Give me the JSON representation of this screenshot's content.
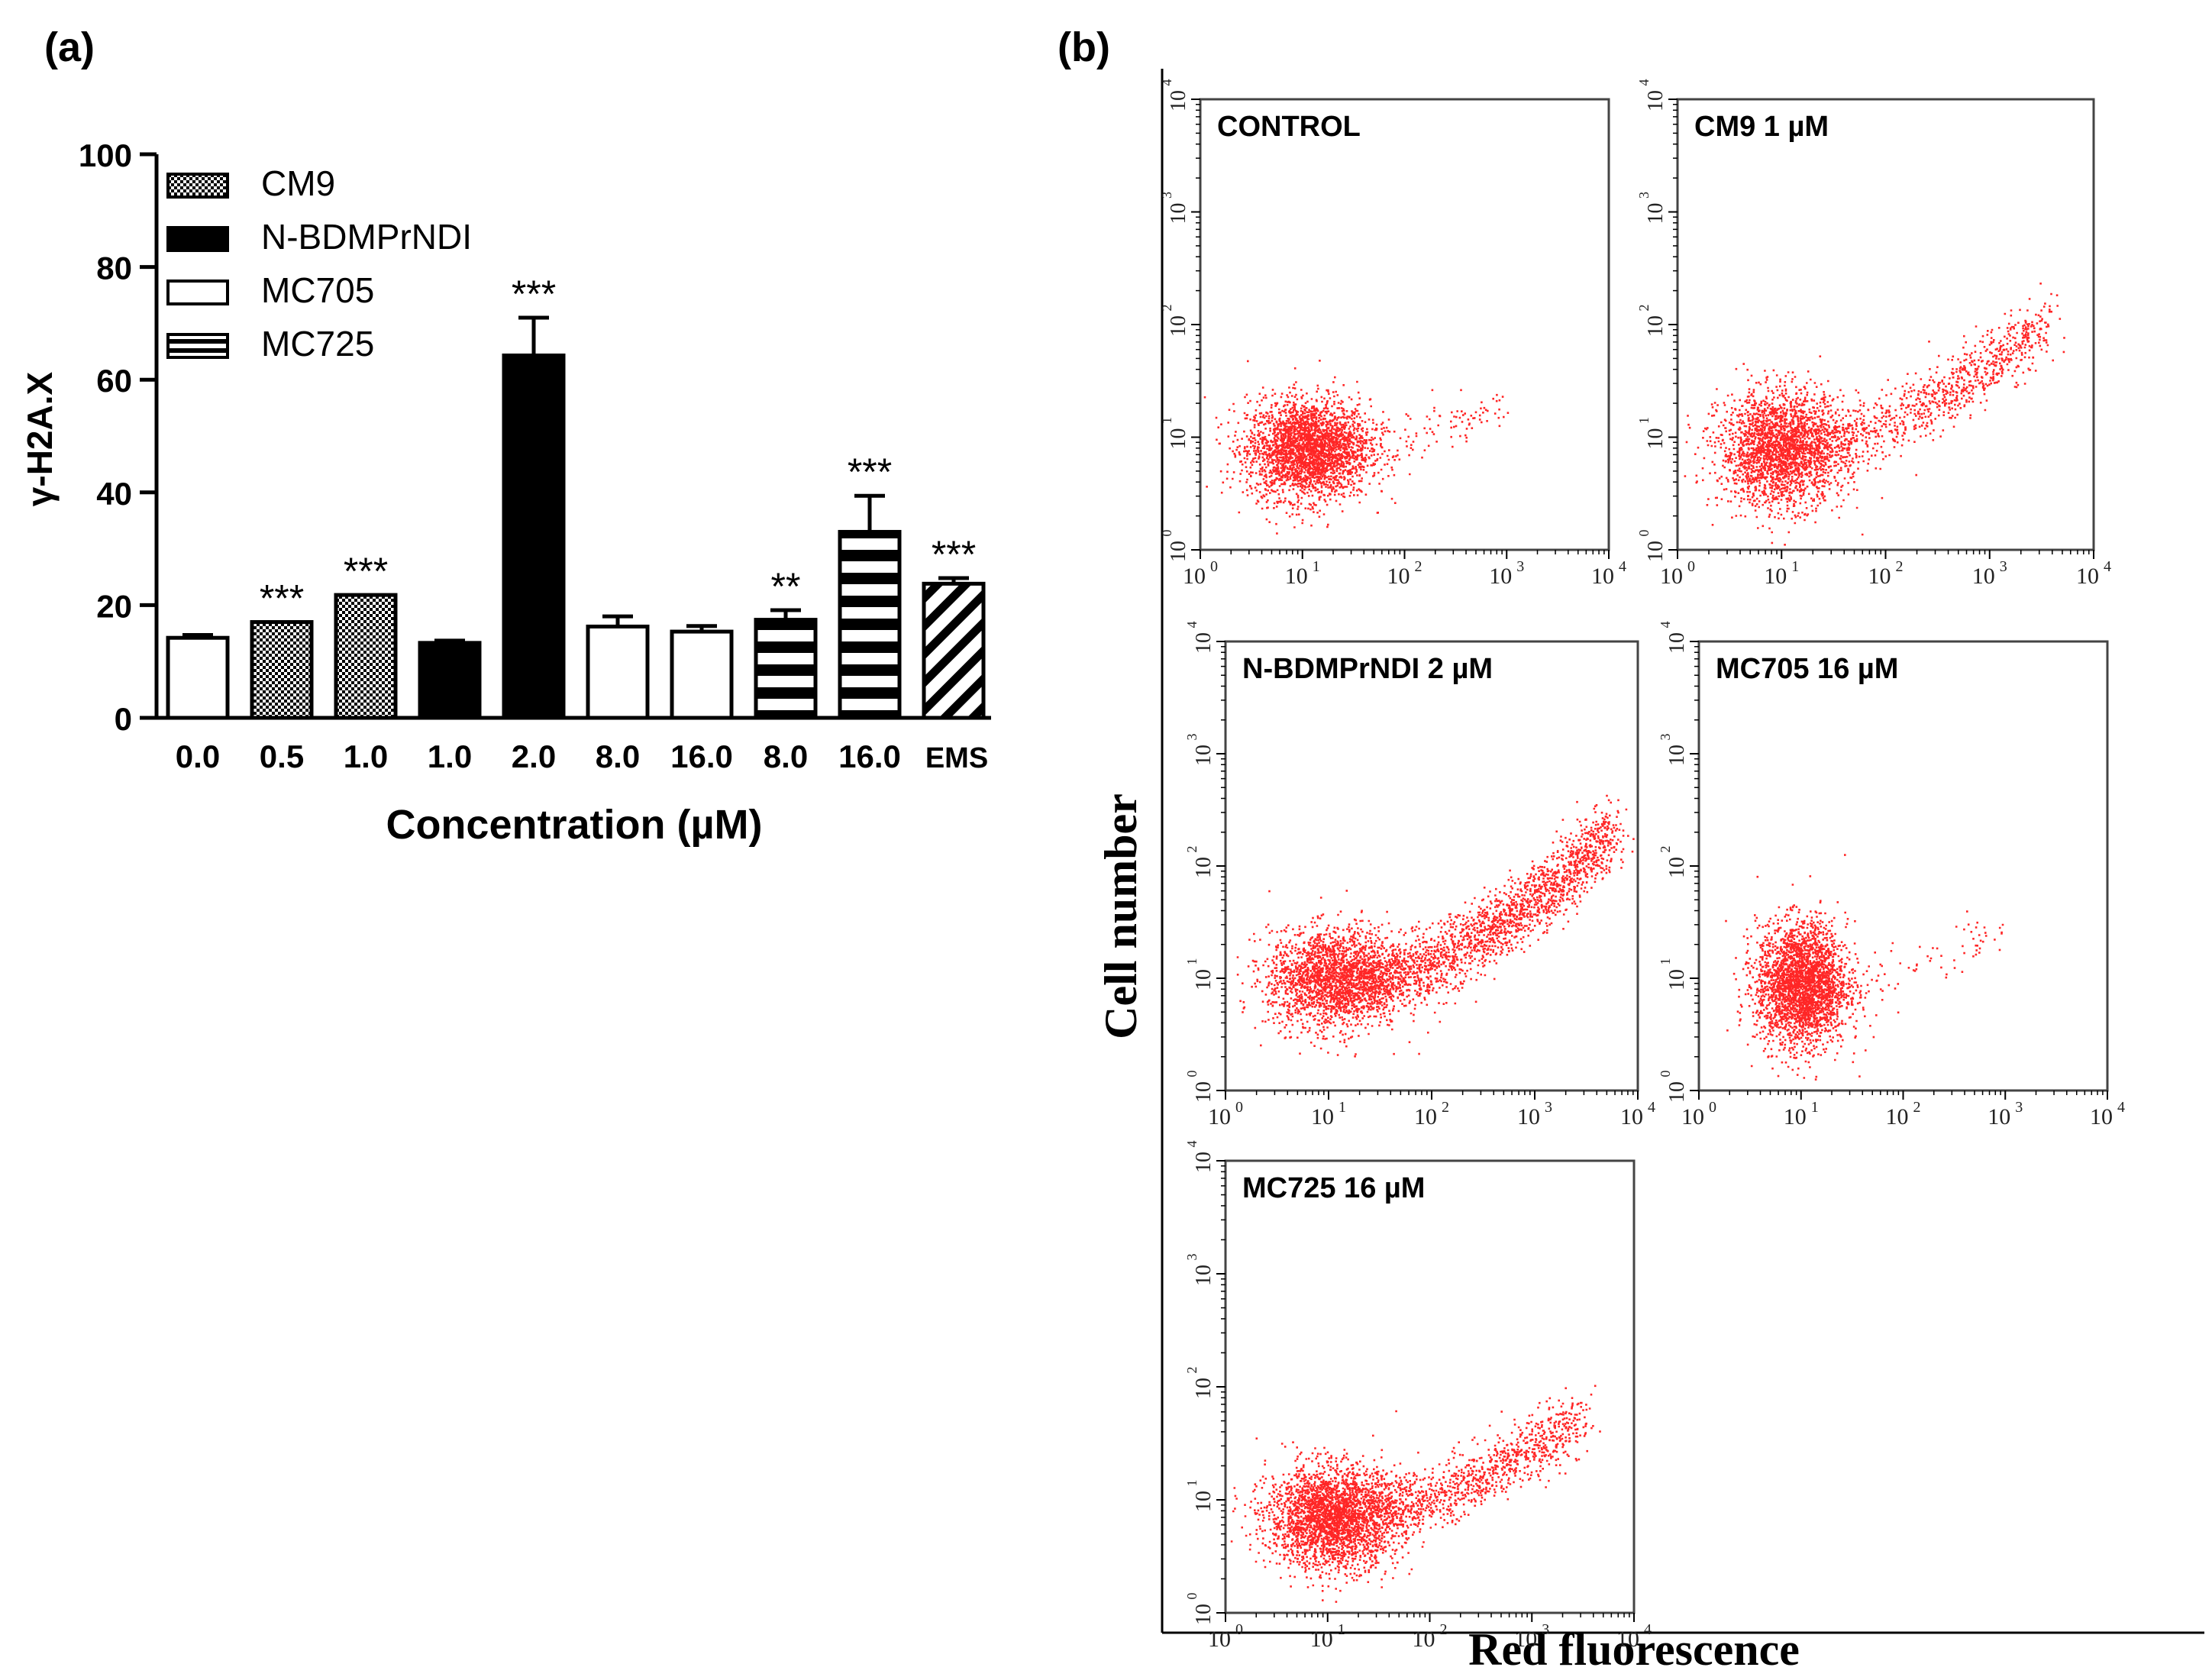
{
  "figure": {
    "panel_a_label": "(a)",
    "panel_b_label": "(b)"
  },
  "colors": {
    "axis": "#000000",
    "scatter": "#ff0000",
    "background": "#ffffff"
  },
  "chart_data": [
    {
      "type": "bar",
      "panel": "(a)",
      "title": "",
      "xlabel": "Concentration (µM)",
      "ylabel": "γ-H2A.X",
      "ylim": [
        0,
        100
      ],
      "yticks": [
        "0",
        "20",
        "40",
        "60",
        "80",
        "100"
      ],
      "ytick_values": [
        0,
        20,
        40,
        60,
        80,
        100
      ],
      "legend_position": "top-left",
      "legend": [
        {
          "name": "CM9",
          "fill": "checker"
        },
        {
          "name": "N-BDMPrNDI",
          "fill": "solid"
        },
        {
          "name": "MC705",
          "fill": "empty"
        },
        {
          "name": "MC725",
          "fill": "hstripe"
        }
      ],
      "bars": [
        {
          "label": "0.0",
          "value": 14.2,
          "error": 0.5,
          "fill": "empty",
          "sig": ""
        },
        {
          "label": "0.5",
          "value": 17.0,
          "error": 0.0,
          "fill": "checker",
          "sig": "***"
        },
        {
          "label": "1.0",
          "value": 21.8,
          "error": 0.0,
          "fill": "checker",
          "sig": "***"
        },
        {
          "label": "1.0",
          "value": 13.3,
          "error": 0.4,
          "fill": "solid",
          "sig": ""
        },
        {
          "label": "2.0",
          "value": 64.3,
          "error": 6.7,
          "fill": "solid",
          "sig": "***"
        },
        {
          "label": "8.0",
          "value": 16.2,
          "error": 1.8,
          "fill": "empty",
          "sig": ""
        },
        {
          "label": "16.0",
          "value": 15.3,
          "error": 1.0,
          "fill": "empty",
          "sig": ""
        },
        {
          "label": "8.0",
          "value": 17.4,
          "error": 1.7,
          "fill": "hstripe",
          "sig": "**"
        },
        {
          "label": "16.0",
          "value": 33.0,
          "error": 6.4,
          "fill": "hstripe",
          "sig": "***"
        },
        {
          "label": "EMS",
          "value": 23.8,
          "error": 1.0,
          "fill": "diag",
          "sig": "***"
        }
      ]
    },
    {
      "type": "scatter",
      "panel": "(b)",
      "xlabel": "Red fluorescence",
      "ylabel": "Cell number",
      "scale": "log",
      "xlim": [
        1,
        10000
      ],
      "ylim": [
        1,
        10000
      ],
      "tick_labels": [
        "10",
        "10",
        "10",
        "10",
        "10"
      ],
      "tick_exponents": [
        "0",
        "1",
        "2",
        "3",
        "4"
      ],
      "plots": [
        {
          "title": "CONTROL",
          "clusters": [
            {
              "cx": 1.05,
              "cy": 0.9,
              "sx": 0.3,
              "sy": 0.22,
              "n": 2800
            }
          ],
          "tails": [
            {
              "x0": 1.3,
              "y0": 0.95,
              "x1": 3.0,
              "y1": 1.3,
              "spread": 0.1,
              "n": 120
            }
          ]
        },
        {
          "title": "CM9 1 µM",
          "clusters": [
            {
              "cx": 1.0,
              "cy": 0.9,
              "sx": 0.3,
              "sy": 0.25,
              "n": 2400
            }
          ],
          "tails": [
            {
              "x0": 1.3,
              "y0": 0.95,
              "x1": 3.55,
              "y1": 2.05,
              "spread": 0.14,
              "n": 900
            }
          ]
        },
        {
          "title": "N-BDMPrNDI 2 µM",
          "clusters": [
            {
              "cx": 1.05,
              "cy": 1.0,
              "sx": 0.32,
              "sy": 0.22,
              "n": 2200
            }
          ],
          "tails": [
            {
              "x0": 1.35,
              "y0": 1.0,
              "x1": 3.75,
              "y1": 2.3,
              "spread": 0.15,
              "n": 1900
            }
          ]
        },
        {
          "title": "MC705 16 µM",
          "clusters": [
            {
              "cx": 1.0,
              "cy": 0.95,
              "sx": 0.22,
              "sy": 0.27,
              "n": 2800
            }
          ],
          "tails": [
            {
              "x0": 1.3,
              "y0": 0.95,
              "x1": 2.9,
              "y1": 1.45,
              "spread": 0.1,
              "n": 80
            }
          ]
        },
        {
          "title": "MC725 16 µM",
          "clusters": [
            {
              "cx": 1.05,
              "cy": 0.85,
              "sx": 0.32,
              "sy": 0.22,
              "n": 2800
            }
          ],
          "tails": [
            {
              "x0": 1.35,
              "y0": 0.9,
              "x1": 3.5,
              "y1": 1.75,
              "spread": 0.14,
              "n": 1000
            }
          ]
        }
      ]
    }
  ]
}
